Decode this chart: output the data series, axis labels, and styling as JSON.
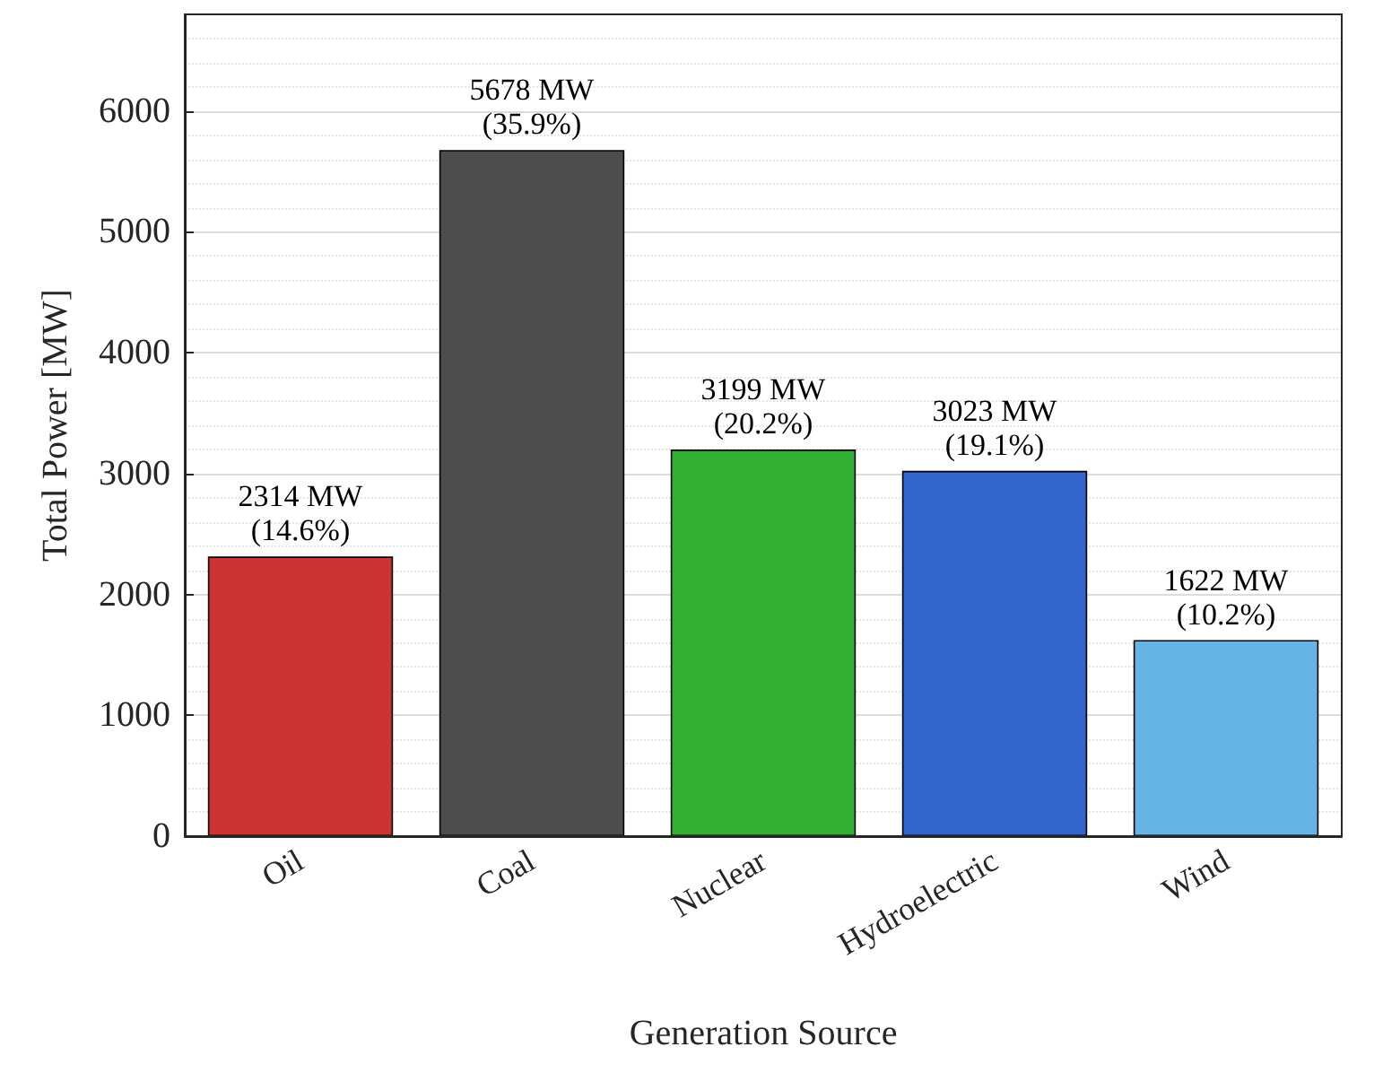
{
  "chart_data": {
    "type": "bar",
    "xlabel": "Generation Source",
    "ylabel": "Total Power [MW]",
    "categories": [
      "Oil",
      "Coal",
      "Nuclear",
      "Hydroelectric",
      "Wind"
    ],
    "values": [
      2314,
      5678,
      3199,
      3023,
      1622
    ],
    "colors": [
      "#cc3333",
      "#4d4d4d",
      "#33b033",
      "#3366cc",
      "#66b3e6"
    ],
    "value_labels": [
      "2314 MW\n(14.6%)",
      "5678 MW\n(35.9%)",
      "3199 MW\n(20.2%)",
      "3023 MW\n(19.1%)",
      "1622 MW\n(10.2%)"
    ],
    "ylim": [
      0,
      6800
    ],
    "yticks": [
      0,
      1000,
      2000,
      3000,
      4000,
      5000,
      6000
    ],
    "grid": "y"
  }
}
